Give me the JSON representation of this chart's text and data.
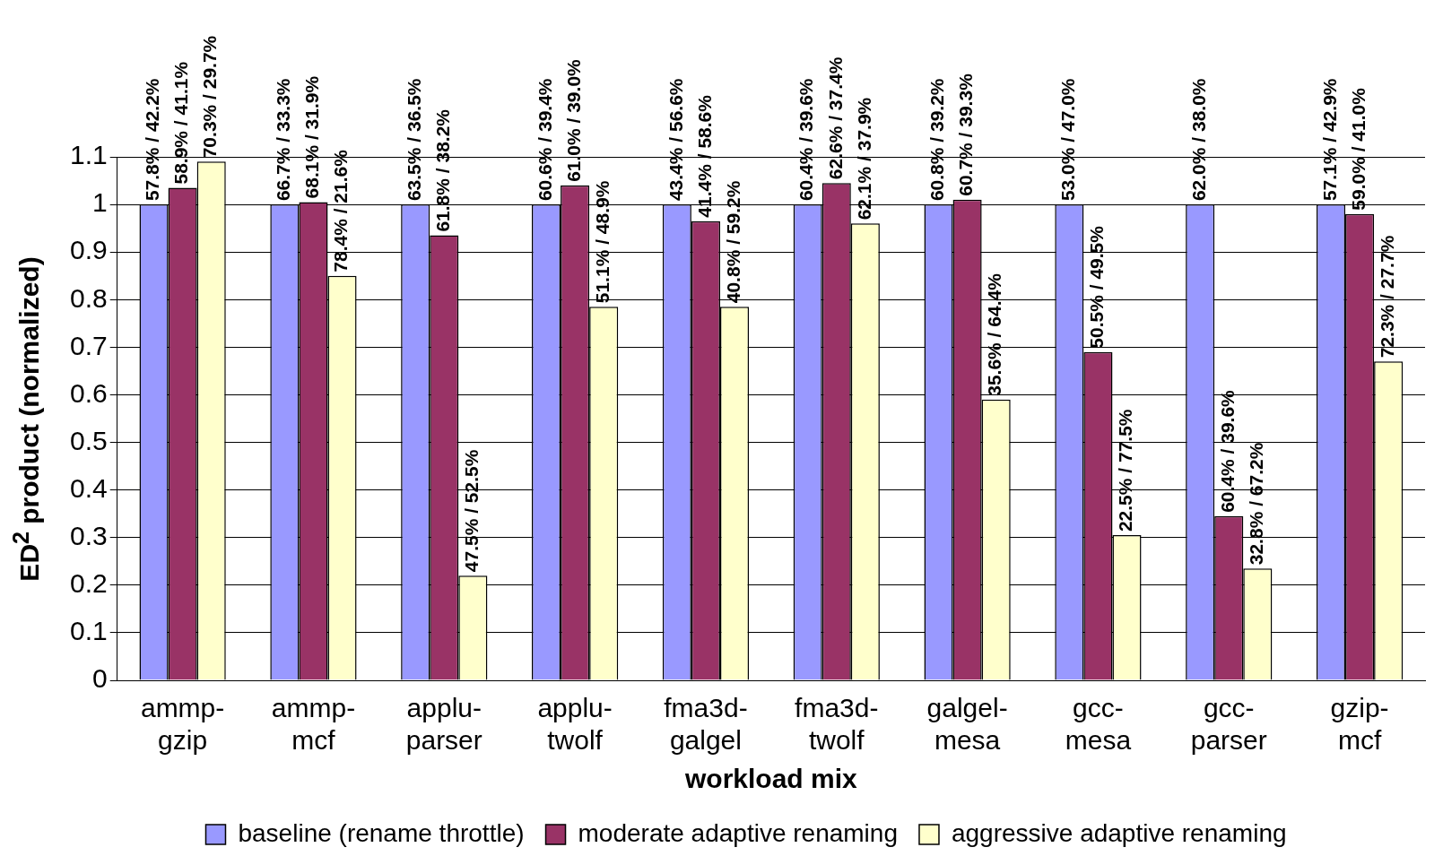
{
  "chart_data": {
    "type": "bar",
    "xlabel": "workload mix",
    "ylabel": "ED$^{2}$ product (normalized)",
    "categories": [
      "ammp-gzip",
      "ammp-mcf",
      "applu-parser",
      "applu-twolf",
      "fma3d-galgel",
      "fma3d-twolf",
      "galgel-mesa",
      "gcc-mesa",
      "gcc-parser",
      "gzip-mcf"
    ],
    "series": [
      {
        "name": "baseline (rename throttle)",
        "color": "#9999ff",
        "values": [
          1,
          1,
          1,
          1,
          1,
          1,
          1,
          1,
          1,
          1
        ]
      },
      {
        "name": "moderate adaptive renaming",
        "color": "#993366",
        "values": [
          1.035,
          1.005,
          0.935,
          1.04,
          0.965,
          1.045,
          1.01,
          0.69,
          0.345,
          0.98
        ]
      },
      {
        "name": "aggressive adaptive renaming",
        "color": "#ffffcc",
        "values": [
          1.09,
          0.85,
          0.22,
          0.785,
          0.785,
          0.96,
          0.59,
          0.305,
          0.235,
          0.67
        ]
      }
    ],
    "annotations": [
      "57.8% / 42.2%",
      "58.9% / 41.1%",
      "70.3% / 29.7%",
      "66.7% / 33.3%",
      "68.1% / 31.9%",
      "78.4% / 21.6%",
      "63.5% / 36.5%",
      "61.8% / 38.2%",
      "47.5% / 52.5%",
      "60.6% / 39.4%",
      "61.0% / 39.0%",
      "51.1% / 48.9%",
      "43.4% / 56.6%",
      "41.4% / 58.6%",
      "40.8% / 59.2%",
      "60.4% / 39.6%",
      "62.6% / 37.4%",
      "62.1% / 37.9%",
      "60.8% / 39.2%",
      "60.7% / 39.3%",
      "35.6% / 64.4%",
      "53.0% / 47.0%",
      "50.5% / 49.5%",
      "22.5% / 77.5%",
      "62.0% / 38.0%",
      "60.4% / 39.6%",
      "32.8% / 67.2%",
      "57.1% / 42.9%",
      "59.0% / 41.0%",
      "72.3% / 27.7%"
    ],
    "ylim": [
      0,
      1.1
    ],
    "yticks": [
      0,
      0.1,
      0.2,
      0.3,
      0.4,
      0.5,
      0.6,
      0.7,
      0.8,
      0.9,
      1,
      1.1
    ],
    "grid": "y",
    "legend": "bottom"
  }
}
